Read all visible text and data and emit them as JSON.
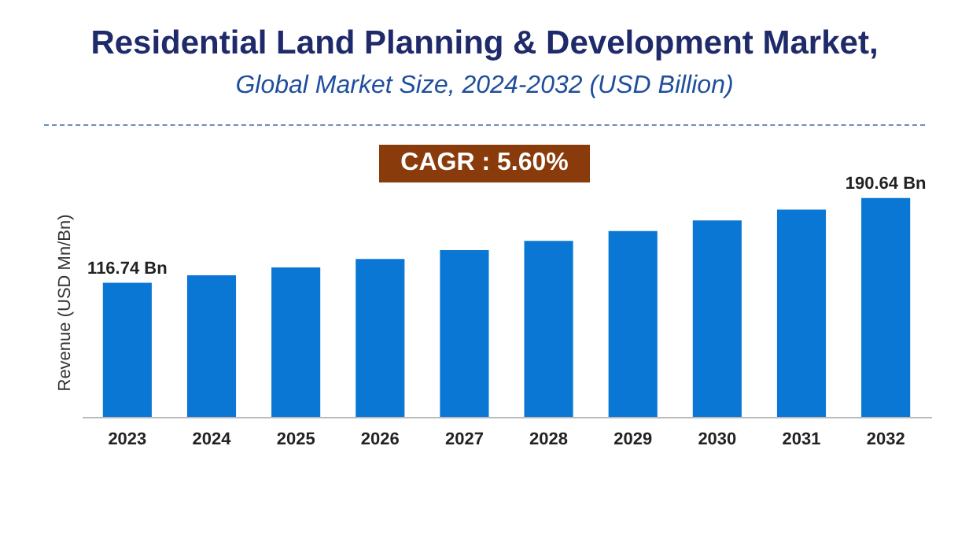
{
  "chart_data": {
    "type": "bar",
    "title": "Residential Land Planning & Development Market,",
    "subtitle": "Global Market Size, 2024-2032 (USD Billion)",
    "ylabel": "Revenue (USD Mn/Bn)",
    "annotations": [
      "CAGR : 5.60%"
    ],
    "categories": [
      "2023",
      "2024",
      "2025",
      "2026",
      "2027",
      "2028",
      "2029",
      "2030",
      "2031",
      "2032"
    ],
    "values": [
      116.74,
      123.3,
      130.2,
      137.5,
      145.2,
      153.3,
      161.9,
      171.0,
      180.5,
      190.64
    ],
    "value_labels": [
      "116.74 Bn",
      null,
      null,
      null,
      null,
      null,
      null,
      null,
      null,
      "190.64 Bn"
    ],
    "color": "#0a77d5"
  }
}
